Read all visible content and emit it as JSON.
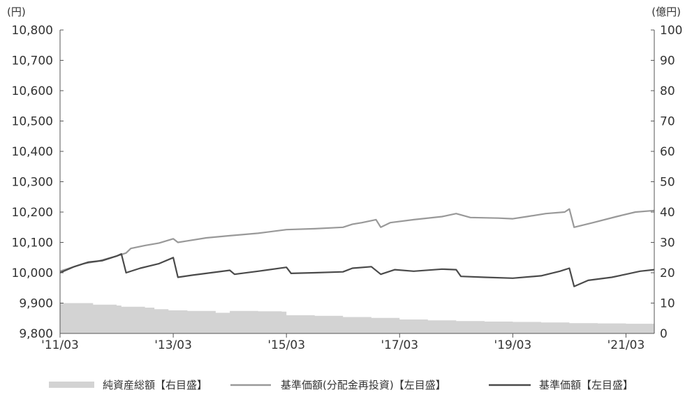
{
  "chart_data": {
    "type": "line",
    "left_unit": "(円)",
    "right_unit": "(億円)",
    "y_left": {
      "min": 9800,
      "max": 10800,
      "step": 100,
      "ticks": [
        "9,800",
        "9,900",
        "10,000",
        "10,100",
        "10,200",
        "10,300",
        "10,400",
        "10,500",
        "10,600",
        "10,700",
        "10,800"
      ]
    },
    "y_right": {
      "min": 0,
      "max": 100,
      "step": 10,
      "ticks": [
        "0",
        "10",
        "20",
        "30",
        "40",
        "50",
        "60",
        "70",
        "80",
        "90",
        "100"
      ]
    },
    "x_axis": {
      "start": "2011-03",
      "end": "2021-09",
      "ticks": [
        "'11/03",
        "'13/03",
        "'15/03",
        "'17/03",
        "'19/03",
        "'21/03"
      ],
      "tick_dates": [
        "2011-03",
        "2013-03",
        "2015-03",
        "2017-03",
        "2019-03",
        "2021-03"
      ]
    },
    "grid": false,
    "legend_position": "bottom",
    "series": [
      {
        "name": "純資産総額【右目盛】",
        "type": "area",
        "axis": "right",
        "color": "#d3d3d3",
        "points": [
          [
            "2011-03",
            10
          ],
          [
            "2011-06",
            10
          ],
          [
            "2011-10",
            9.5
          ],
          [
            "2012-03",
            9.2
          ],
          [
            "2012-04",
            8.8
          ],
          [
            "2012-09",
            8.5
          ],
          [
            "2012-11",
            8
          ],
          [
            "2013-02",
            7.6
          ],
          [
            "2013-06",
            7.4
          ],
          [
            "2013-12",
            6.8
          ],
          [
            "2014-03",
            7.4
          ],
          [
            "2014-09",
            7.3
          ],
          [
            "2015-02",
            7.2
          ],
          [
            "2015-03",
            6
          ],
          [
            "2015-09",
            5.8
          ],
          [
            "2016-03",
            5.4
          ],
          [
            "2016-09",
            5.1
          ],
          [
            "2017-03",
            4.6
          ],
          [
            "2017-09",
            4.3
          ],
          [
            "2018-03",
            4.1
          ],
          [
            "2018-09",
            3.9
          ],
          [
            "2019-03",
            3.8
          ],
          [
            "2019-09",
            3.6
          ],
          [
            "2020-03",
            3.4
          ],
          [
            "2020-09",
            3.3
          ],
          [
            "2021-03",
            3.2
          ],
          [
            "2021-09",
            3.0
          ]
        ]
      },
      {
        "name": "基準価額(分配金再投資)【左目盛】",
        "type": "line",
        "axis": "left",
        "color": "#999999",
        "points": [
          [
            "2011-03",
            10005
          ],
          [
            "2011-08",
            10030
          ],
          [
            "2011-11",
            10038
          ],
          [
            "2012-03",
            10055
          ],
          [
            "2012-05",
            10065
          ],
          [
            "2012-06",
            10080
          ],
          [
            "2012-09",
            10090
          ],
          [
            "2012-12",
            10098
          ],
          [
            "2013-03",
            10112
          ],
          [
            "2013-04",
            10100
          ],
          [
            "2013-06",
            10105
          ],
          [
            "2013-10",
            10115
          ],
          [
            "2014-03",
            10122
          ],
          [
            "2014-09",
            10130
          ],
          [
            "2015-03",
            10142
          ],
          [
            "2015-09",
            10145
          ],
          [
            "2016-03",
            10150
          ],
          [
            "2016-05",
            10160
          ],
          [
            "2016-07",
            10165
          ],
          [
            "2016-10",
            10175
          ],
          [
            "2016-11",
            10150
          ],
          [
            "2017-01",
            10165
          ],
          [
            "2017-06",
            10175
          ],
          [
            "2017-12",
            10185
          ],
          [
            "2018-03",
            10195
          ],
          [
            "2018-06",
            10182
          ],
          [
            "2018-12",
            10180
          ],
          [
            "2019-03",
            10178
          ],
          [
            "2019-06",
            10185
          ],
          [
            "2019-10",
            10195
          ],
          [
            "2020-02",
            10200
          ],
          [
            "2020-03",
            10210
          ],
          [
            "2020-04",
            10150
          ],
          [
            "2020-08",
            10165
          ],
          [
            "2021-01",
            10185
          ],
          [
            "2021-05",
            10200
          ],
          [
            "2021-09",
            10205
          ]
        ]
      },
      {
        "name": "基準価額【左目盛】",
        "type": "line",
        "axis": "left",
        "color": "#4a4a4a",
        "points": [
          [
            "2011-03",
            10000
          ],
          [
            "2011-06",
            10020
          ],
          [
            "2011-09",
            10035
          ],
          [
            "2011-12",
            10040
          ],
          [
            "2012-03",
            10055
          ],
          [
            "2012-04",
            10062
          ],
          [
            "2012-05",
            10000
          ],
          [
            "2012-08",
            10015
          ],
          [
            "2012-12",
            10030
          ],
          [
            "2013-03",
            10050
          ],
          [
            "2013-04",
            9985
          ],
          [
            "2013-07",
            9992
          ],
          [
            "2013-12",
            10002
          ],
          [
            "2014-03",
            10008
          ],
          [
            "2014-04",
            9995
          ],
          [
            "2014-09",
            10005
          ],
          [
            "2015-03",
            10018
          ],
          [
            "2015-04",
            9998
          ],
          [
            "2015-09",
            10000
          ],
          [
            "2016-03",
            10003
          ],
          [
            "2016-05",
            10015
          ],
          [
            "2016-09",
            10020
          ],
          [
            "2016-11",
            9995
          ],
          [
            "2017-02",
            10010
          ],
          [
            "2017-06",
            10005
          ],
          [
            "2017-12",
            10012
          ],
          [
            "2018-03",
            10010
          ],
          [
            "2018-04",
            9988
          ],
          [
            "2018-09",
            9985
          ],
          [
            "2019-03",
            9982
          ],
          [
            "2019-09",
            9990
          ],
          [
            "2020-01",
            10005
          ],
          [
            "2020-03",
            10015
          ],
          [
            "2020-04",
            9955
          ],
          [
            "2020-07",
            9975
          ],
          [
            "2020-12",
            9985
          ],
          [
            "2021-03",
            9995
          ],
          [
            "2021-06",
            10005
          ],
          [
            "2021-09",
            10010
          ]
        ]
      }
    ]
  }
}
